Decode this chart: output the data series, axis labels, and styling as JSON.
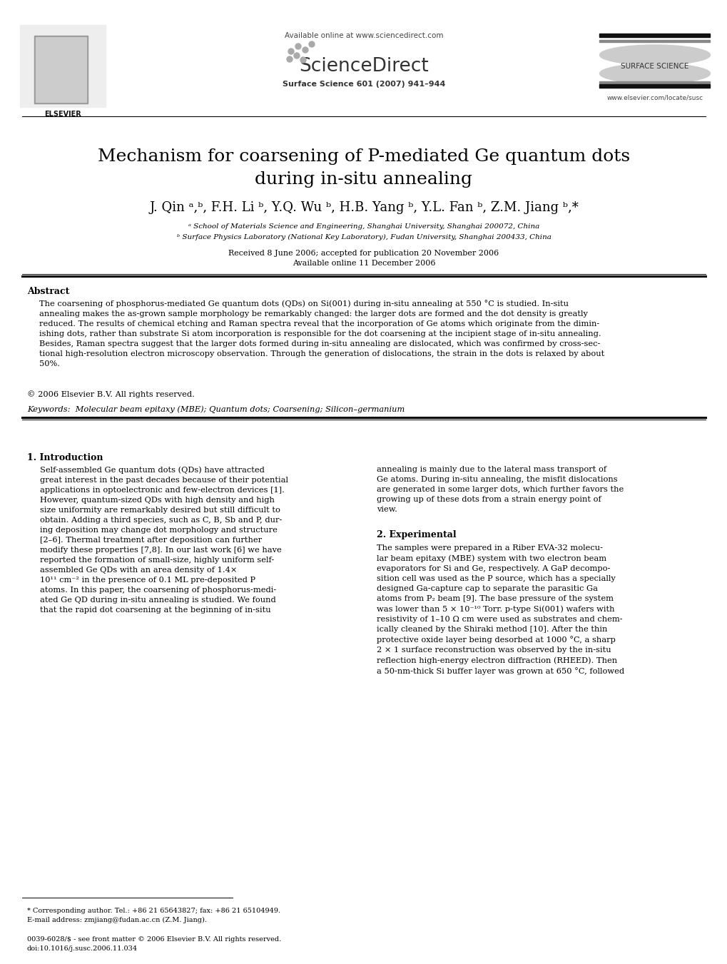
{
  "bg_color": "#ffffff",
  "header": {
    "available_online": "Available online at www.sciencedirect.com",
    "journal": "Surface Science 601 (2007) 941–944",
    "journal_url": "www.elsevier.com/locate/susc",
    "surface_science_label": "SURFACE SCIENCE"
  },
  "title": "Mechanism for coarsening of P-mediated Ge quantum dots\nduring in-situ annealing",
  "authors": "J. Qin ᵃ,ᵇ, F.H. Li ᵇ, Y.Q. Wu ᵇ, H.B. Yang ᵇ, Y.L. Fan ᵇ, Z.M. Jiang ᵇ,*",
  "affil_a": "ᵃ School of Materials Science and Engineering, Shanghai University, Shanghai 200072, China",
  "affil_b": "ᵇ Surface Physics Laboratory (National Key Laboratory), Fudan University, Shanghai 200433, China",
  "received": "Received 8 June 2006; accepted for publication 20 November 2006",
  "available": "Available online 11 December 2006",
  "abstract_title": "Abstract",
  "copyright": "© 2006 Elsevier B.V. All rights reserved.",
  "keywords": "Keywords:  Molecular beam epitaxy (MBE); Quantum dots; Coarsening; Silicon–germanium",
  "section1_title": "1. Introduction",
  "section2_title": "2. Experimental",
  "footer_left": "* Corresponding author. Tel.: +86 21 65643827; fax: +86 21 65104949.\nE-mail address: zmjiang@fudan.ac.cn (Z.M. Jiang).",
  "footer_issn": "0039-6028/$ - see front matter © 2006 Elsevier B.V. All rights reserved.\ndoi:10.1016/j.susc.2006.11.034"
}
